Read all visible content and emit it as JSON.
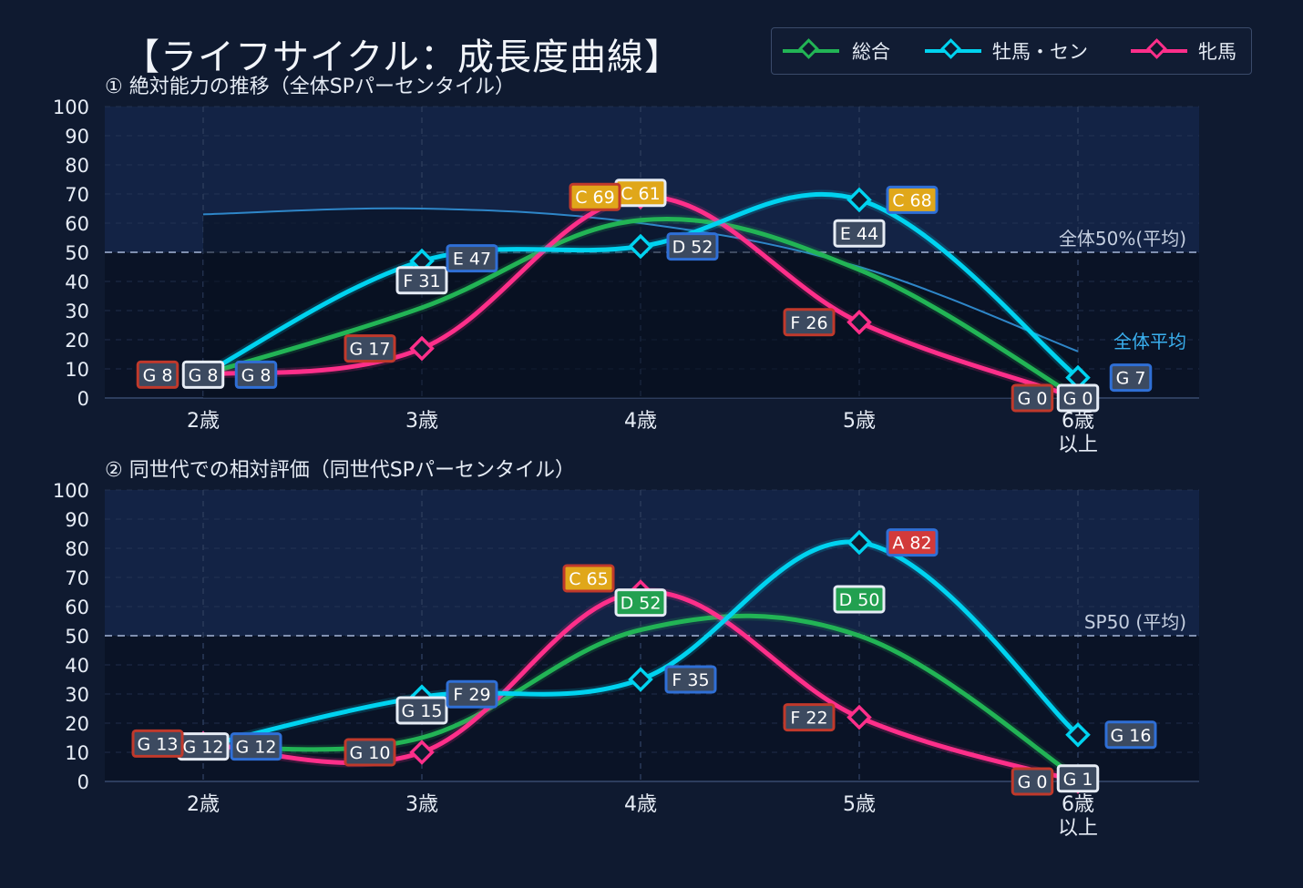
{
  "title": "【ライフサイクル：成長度曲線】",
  "legend": [
    {
      "name": "総合",
      "color": "#22b455"
    },
    {
      "name": "牡馬・セン",
      "color": "#00d3f0"
    },
    {
      "name": "牝馬",
      "color": "#ff2f8a"
    }
  ],
  "colors": {
    "background": "#0f1a30",
    "plot": "#0a1326",
    "upper_band": "#132345",
    "axis_text": "#e6ecf5"
  },
  "chart_data": [
    {
      "type": "line",
      "title": "① 絶対能力の推移（全体SPパーセンタイル）",
      "categories": [
        "2歳",
        "3歳",
        "4歳",
        "5歳",
        "6歳\n以上"
      ],
      "ylim": [
        0,
        100
      ],
      "yticks": [
        0,
        10,
        20,
        30,
        40,
        50,
        60,
        70,
        80,
        90,
        100
      ],
      "grid": true,
      "legend_position": "top-right",
      "reference_line": {
        "value": 50,
        "label": "全体50%(平均)"
      },
      "average_curve": {
        "label": "全体平均",
        "values": [
          63,
          65,
          60,
          45,
          16
        ]
      },
      "series": [
        {
          "name": "総合",
          "values": [
            8,
            31,
            61,
            44,
            0
          ],
          "grades": [
            "G",
            "F",
            "C",
            "E",
            "G"
          ]
        },
        {
          "name": "牡馬・セン",
          "values": [
            8,
            47,
            52,
            68,
            7
          ],
          "grades": [
            "G",
            "E",
            "D",
            "C",
            "G"
          ]
        },
        {
          "name": "牝馬",
          "values": [
            8,
            17,
            69,
            26,
            0
          ],
          "grades": [
            "G",
            "G",
            "C",
            "F",
            "G"
          ]
        }
      ]
    },
    {
      "type": "line",
      "title": "② 同世代での相対評価（同世代SPパーセンタイル）",
      "categories": [
        "2歳",
        "3歳",
        "4歳",
        "5歳",
        "6歳\n以上"
      ],
      "ylim": [
        0,
        100
      ],
      "yticks": [
        0,
        10,
        20,
        30,
        40,
        50,
        60,
        70,
        80,
        90,
        100
      ],
      "grid": true,
      "reference_line": {
        "value": 50,
        "label": "SP50 (平均)"
      },
      "series": [
        {
          "name": "総合",
          "values": [
            12,
            15,
            52,
            50,
            1
          ],
          "grades": [
            "G",
            "G",
            "D",
            "D",
            "G"
          ]
        },
        {
          "name": "牡馬・セン",
          "values": [
            12,
            29,
            35,
            82,
            16
          ],
          "grades": [
            "G",
            "F",
            "F",
            "A",
            "G"
          ]
        },
        {
          "name": "牝馬",
          "values": [
            13,
            10,
            65,
            22,
            0
          ],
          "grades": [
            "G",
            "G",
            "C",
            "F",
            "G"
          ]
        }
      ]
    }
  ]
}
